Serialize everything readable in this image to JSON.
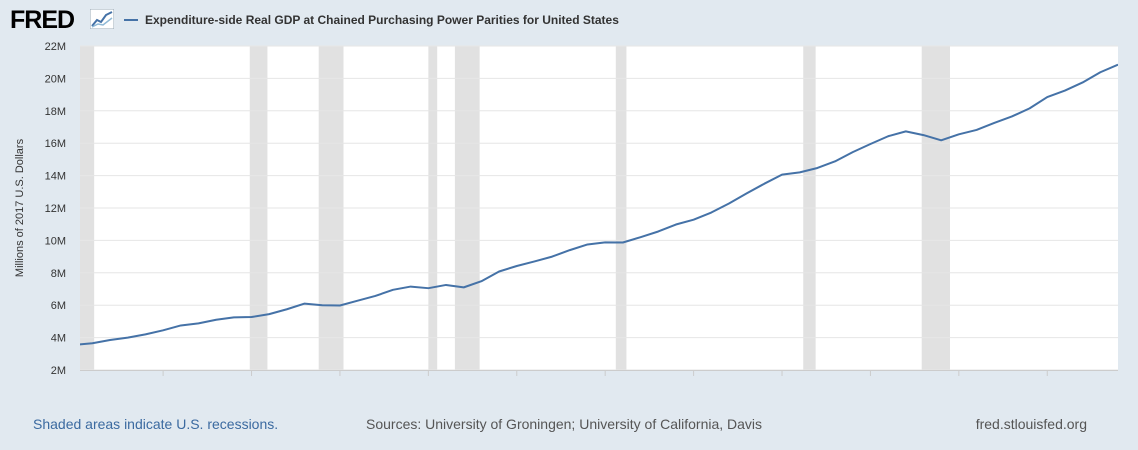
{
  "header": {
    "logo_text": "FRED",
    "logo_icon": "chart-line-icon"
  },
  "footer": {
    "recession_note": "Shaded areas indicate U.S. recessions.",
    "sources": "Sources: University of Groningen; University of California, Davis",
    "site": "fred.stlouisfed.org"
  },
  "chart_data": {
    "type": "line",
    "title": "",
    "xlabel": "",
    "ylabel": "Millions of 2017 U.S. Dollars",
    "xlim": [
      1960.3,
      2019
    ],
    "ylim": [
      2000000,
      22000000
    ],
    "x_ticks": [
      1965,
      1970,
      1975,
      1980,
      1985,
      1990,
      1995,
      2000,
      2005,
      2010,
      2015
    ],
    "y_ticks": [
      {
        "value": 2000000,
        "label": "2M"
      },
      {
        "value": 4000000,
        "label": "4M"
      },
      {
        "value": 6000000,
        "label": "6M"
      },
      {
        "value": 8000000,
        "label": "8M"
      },
      {
        "value": 10000000,
        "label": "10M"
      },
      {
        "value": 12000000,
        "label": "12M"
      },
      {
        "value": 14000000,
        "label": "14M"
      },
      {
        "value": 16000000,
        "label": "16M"
      },
      {
        "value": 18000000,
        "label": "18M"
      },
      {
        "value": 20000000,
        "label": "20M"
      },
      {
        "value": 22000000,
        "label": "22M"
      }
    ],
    "grid": true,
    "legend": "top-left",
    "series": [
      {
        "name": "Expenditure-side Real GDP at Chained Purchasing Power Parities for United States",
        "color": "#4572a7",
        "x": [
          1960,
          1961,
          1962,
          1963,
          1964,
          1965,
          1966,
          1967,
          1968,
          1969,
          1970,
          1971,
          1972,
          1973,
          1974,
          1975,
          1976,
          1977,
          1978,
          1979,
          1980,
          1981,
          1982,
          1983,
          1984,
          1985,
          1986,
          1987,
          1988,
          1989,
          1990,
          1991,
          1992,
          1993,
          1994,
          1995,
          1996,
          1997,
          1998,
          1999,
          2000,
          2001,
          2002,
          2003,
          2004,
          2005,
          2006,
          2007,
          2008,
          2009,
          2010,
          2011,
          2012,
          2013,
          2014,
          2015,
          2016,
          2017,
          2018,
          2019
        ],
        "values": [
          3550000,
          3650000,
          3850000,
          4000000,
          4200000,
          4450000,
          4750000,
          4880000,
          5100000,
          5250000,
          5270000,
          5450000,
          5750000,
          6100000,
          6000000,
          5980000,
          6280000,
          6570000,
          6950000,
          7150000,
          7050000,
          7250000,
          7100000,
          7480000,
          8080000,
          8420000,
          8700000,
          9000000,
          9400000,
          9750000,
          9880000,
          9870000,
          10200000,
          10550000,
          10980000,
          11280000,
          11720000,
          12280000,
          12900000,
          13500000,
          14060000,
          14200000,
          14470000,
          14880000,
          15450000,
          15950000,
          16430000,
          16730000,
          16500000,
          16180000,
          16550000,
          16820000,
          17250000,
          17650000,
          18150000,
          18850000,
          19250000,
          19750000,
          20380000,
          20850000
        ]
      }
    ],
    "recessions": [
      [
        1960.3,
        1961.1
      ],
      [
        1969.9,
        1970.9
      ],
      [
        1973.8,
        1975.2
      ],
      [
        1980.0,
        1980.5
      ],
      [
        1981.5,
        1982.9
      ],
      [
        1990.6,
        1991.2
      ],
      [
        2001.2,
        2001.9
      ],
      [
        2007.9,
        2009.5
      ]
    ]
  }
}
